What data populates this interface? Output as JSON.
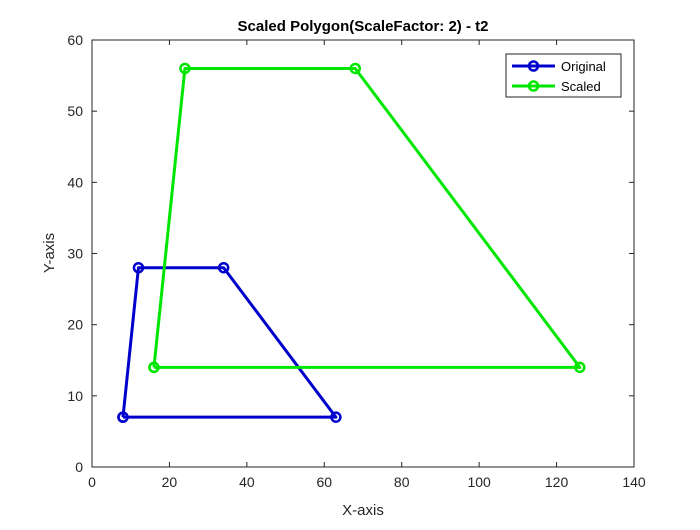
{
  "chart_data": {
    "type": "line",
    "title": "Scaled Polygon(ScaleFactor: 2) - t2",
    "xlabel": "X-axis",
    "ylabel": "Y-axis",
    "xlim": [
      0,
      140
    ],
    "ylim": [
      0,
      60
    ],
    "xticks": [
      0,
      20,
      40,
      60,
      80,
      100,
      120,
      140
    ],
    "yticks": [
      0,
      10,
      20,
      30,
      40,
      50,
      60
    ],
    "grid": false,
    "legend_position": "top-right",
    "series": [
      {
        "name": "Original",
        "color": "#0000cc",
        "marker": "circle",
        "x": [
          8,
          12,
          34,
          63,
          8
        ],
        "y": [
          7,
          28,
          28,
          7,
          7
        ]
      },
      {
        "name": "Scaled",
        "color": "#00e600",
        "marker": "circle",
        "x": [
          16,
          24,
          68,
          126,
          16
        ],
        "y": [
          14,
          56,
          56,
          14,
          14
        ]
      }
    ]
  }
}
